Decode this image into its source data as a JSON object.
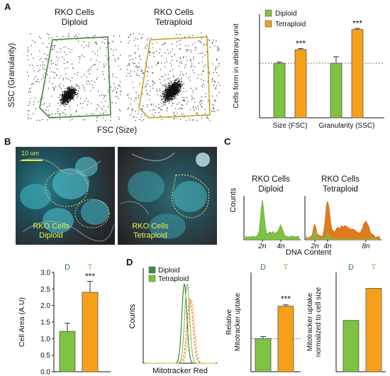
{
  "panels": {
    "A": "A",
    "B": "B",
    "C": "C",
    "D": "D"
  },
  "panelA": {
    "flow1_title_line1": "RKO Cells",
    "flow1_title_line2": "Diploid",
    "flow2_title_line1": "RKO Cells",
    "flow2_title_line2": "Tetraploid",
    "y_label": "SSC (Granularity)",
    "x_label": "FSC (Size)"
  },
  "panelB": {
    "scale_bar": "10 um",
    "img1_line1": "RKO Cells",
    "img1_line2": "Diploid",
    "img2_line1": "RKO Cells",
    "img2_line2": "Tetraploid"
  },
  "panelC": {
    "hist1_line1": "RKO Cells",
    "hist1_line2": "Diploid",
    "hist2_line1": "RKO Cells",
    "hist2_line2": "Tetraploid",
    "y_label": "Counts",
    "x_label": "DNA Content",
    "ticks_left": [
      "2n",
      "4n"
    ],
    "ticks_right": [
      "2n",
      "4n",
      "8n"
    ]
  },
  "panelD": {
    "legend": [
      "Diploid",
      "Tetraploid"
    ],
    "y_label": "Counts",
    "x_label": "Mitotracker Red"
  },
  "colors": {
    "diploid": "#7dc242",
    "tetraploid": "#f6a01a",
    "diploid_dark": "#2e7d32",
    "tetraploid_dark": "#c9a227",
    "flow_gate_diploid": "#3b8a3b",
    "flow_gate_tetraploid": "#c9a227"
  },
  "chart_data": [
    {
      "id": "cells-form",
      "type": "bar",
      "ylabel": "Cells form in arbitrary unit",
      "categories": [
        "Size (FSC)",
        "Granularity (SSC)"
      ],
      "series": [
        {
          "name": "Diploid",
          "values": [
            1.0,
            1.0
          ],
          "errors": [
            0.02,
            0.12
          ]
        },
        {
          "name": "Tetraploid",
          "values": [
            1.25,
            1.62
          ],
          "errors": [
            0.02,
            0.02
          ]
        }
      ],
      "significance": [
        "***",
        "***"
      ],
      "ylim": [
        0,
        1.9
      ],
      "reference_line": 1.0,
      "legend_position": "top-left"
    },
    {
      "id": "cell-area",
      "type": "bar",
      "ylabel": "Cell Area (A.U)",
      "categories": [
        "D",
        "T"
      ],
      "values": [
        1.22,
        2.4
      ],
      "errors": [
        0.25,
        0.33
      ],
      "significance": [
        "",
        "***"
      ],
      "ylim": [
        0,
        3.0
      ],
      "yticks": [
        "0.0",
        "0.5",
        "1.0",
        "1.5",
        "2.0",
        "2.5",
        "3.0"
      ]
    },
    {
      "id": "mitotracker-uptake",
      "type": "bar",
      "ylabel": "Relative Mitotracker uptake",
      "categories": [
        "D",
        "T"
      ],
      "values": [
        1.0,
        1.98
      ],
      "errors": [
        0.06,
        0.04
      ],
      "significance": [
        "",
        "***"
      ],
      "ylim": [
        0,
        3.0
      ],
      "reference_line": 1.0
    },
    {
      "id": "mitotracker-normalized",
      "type": "bar",
      "ylabel": "Mitotracker uptake normalized to cell size",
      "categories": [
        "D",
        "T"
      ],
      "values": [
        1.55,
        2.52
      ],
      "errors": [
        0,
        0
      ],
      "ylim": [
        0,
        3.0
      ]
    }
  ]
}
